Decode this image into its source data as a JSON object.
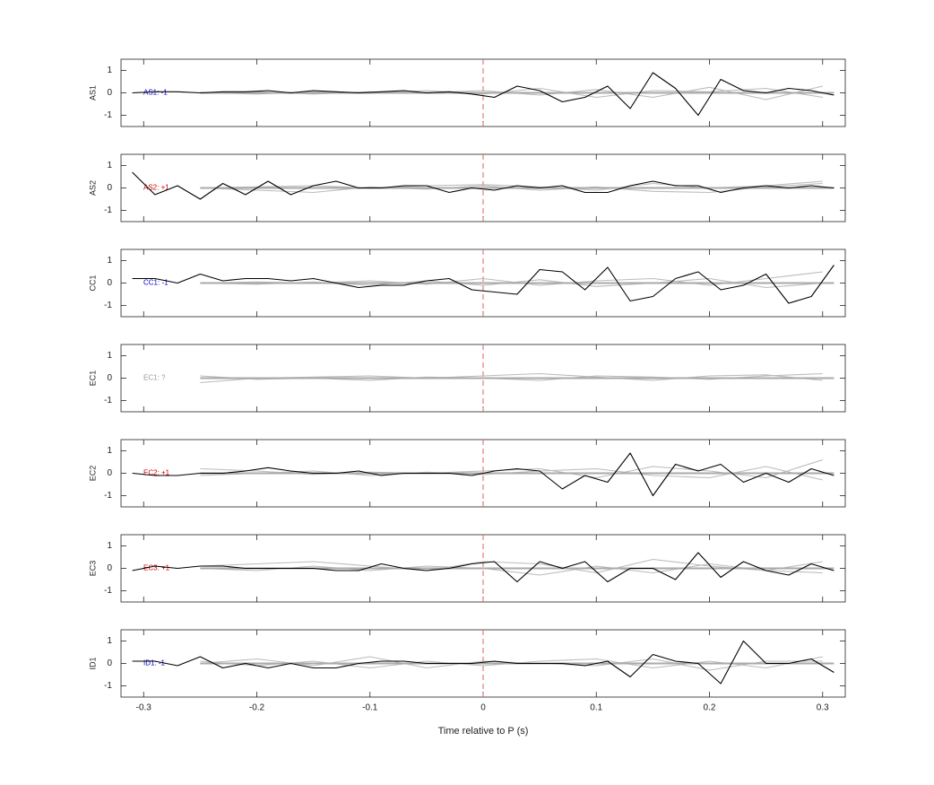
{
  "chart_data": [
    {
      "type": "line",
      "ylabel": "AS1",
      "annotation": "AS1: -1",
      "annotation_color": "#0000cc",
      "x": [
        -0.31,
        -0.29,
        -0.27,
        -0.25,
        -0.23,
        -0.21,
        -0.19,
        -0.17,
        -0.15,
        -0.13,
        -0.11,
        -0.09,
        -0.07,
        -0.05,
        -0.03,
        -0.01,
        0.01,
        0.03,
        0.05,
        0.07,
        0.09,
        0.11,
        0.13,
        0.15,
        0.17,
        0.19,
        0.21,
        0.23,
        0.25,
        0.27,
        0.29,
        0.31
      ],
      "xlim": [
        -0.32,
        0.32
      ],
      "xticks": [
        -0.3,
        -0.2,
        -0.1,
        0,
        0.1,
        0.2,
        0.3
      ],
      "ylim": [
        -1.5,
        1.5
      ],
      "yticks": [
        -1,
        0,
        1
      ],
      "vline": 0,
      "vline_color": "#e06060",
      "series": [
        {
          "color": "#bbbbbb",
          "x": [
            -0.25,
            -0.2,
            -0.15,
            -0.1,
            -0.05,
            0,
            0.05,
            0.1,
            0.15,
            0.2,
            0.25,
            0.3
          ],
          "values": [
            0,
            0.05,
            -0.05,
            0.05,
            0,
            0.1,
            -0.1,
            0.15,
            -0.2,
            0.25,
            -0.3,
            0.3
          ]
        },
        {
          "color": "#bbbbbb",
          "x": [
            -0.25,
            -0.2,
            -0.15,
            -0.1,
            -0.05,
            0,
            0.05,
            0.1,
            0.15,
            0.2,
            0.25,
            0.3
          ],
          "values": [
            0,
            -0.05,
            0.05,
            0,
            0.1,
            -0.05,
            0.2,
            -0.2,
            0.1,
            0.05,
            0.2,
            -0.2
          ]
        },
        {
          "color": "#aaaaaa",
          "line_width": 2,
          "x": [
            -0.25,
            0.31
          ],
          "values": [
            0,
            0
          ]
        },
        {
          "color": "#000000",
          "values": [
            0.0,
            0.05,
            0.05,
            0.0,
            0.05,
            0.05,
            0.1,
            0.0,
            0.1,
            0.05,
            0.0,
            0.05,
            0.1,
            0.0,
            0.05,
            -0.05,
            -0.2,
            0.3,
            0.1,
            -0.4,
            -0.2,
            0.3,
            -0.7,
            0.9,
            0.2,
            -1.0,
            0.6,
            0.1,
            0.0,
            0.2,
            0.1,
            -0.1
          ]
        }
      ]
    },
    {
      "type": "line",
      "ylabel": "AS2",
      "annotation": "AS2: +1",
      "annotation_color": "#cc0000",
      "x": [
        -0.31,
        -0.29,
        -0.27,
        -0.25,
        -0.23,
        -0.21,
        -0.19,
        -0.17,
        -0.15,
        -0.13,
        -0.11,
        -0.09,
        -0.07,
        -0.05,
        -0.03,
        -0.01,
        0.01,
        0.03,
        0.05,
        0.07,
        0.09,
        0.11,
        0.13,
        0.15,
        0.17,
        0.19,
        0.21,
        0.23,
        0.25,
        0.27,
        0.29,
        0.31
      ],
      "xlim": [
        -0.32,
        0.32
      ],
      "xticks": [
        -0.3,
        -0.2,
        -0.1,
        0,
        0.1,
        0.2,
        0.3
      ],
      "ylim": [
        -1.5,
        1.5
      ],
      "yticks": [
        -1,
        0,
        1
      ],
      "vline": 0,
      "vline_color": "#e06060",
      "series": [
        {
          "color": "#bbbbbb",
          "x": [
            -0.25,
            -0.2,
            -0.15,
            -0.1,
            -0.05,
            0,
            0.05,
            0.1,
            0.15,
            0.2,
            0.25,
            0.3
          ],
          "values": [
            0,
            0.05,
            0.1,
            0,
            0.1,
            0.15,
            0.05,
            -0.1,
            0.2,
            0,
            0.1,
            0.3
          ]
        },
        {
          "color": "#bbbbbb",
          "x": [
            -0.25,
            -0.2,
            -0.15,
            -0.1,
            -0.05,
            0,
            0.05,
            0.1,
            0.15,
            0.2,
            0.25,
            0.3
          ],
          "values": [
            0,
            -0.1,
            -0.2,
            0.05,
            -0.05,
            0.1,
            -0.1,
            0.05,
            -0.15,
            -0.2,
            0.05,
            0.2
          ]
        },
        {
          "color": "#aaaaaa",
          "line_width": 2,
          "x": [
            -0.25,
            0.31
          ],
          "values": [
            0,
            0
          ]
        },
        {
          "color": "#000000",
          "values": [
            0.7,
            -0.3,
            0.1,
            -0.5,
            0.2,
            -0.3,
            0.3,
            -0.3,
            0.1,
            0.3,
            0.0,
            0.0,
            0.1,
            0.1,
            -0.2,
            0.0,
            -0.1,
            0.1,
            0.0,
            0.1,
            -0.2,
            -0.2,
            0.1,
            0.3,
            0.1,
            0.1,
            -0.2,
            0.0,
            0.1,
            0.0,
            0.1,
            0.0
          ]
        }
      ]
    },
    {
      "type": "line",
      "ylabel": "CC1",
      "annotation": "CC1: -1",
      "annotation_color": "#0000cc",
      "x": [
        -0.31,
        -0.29,
        -0.27,
        -0.25,
        -0.23,
        -0.21,
        -0.19,
        -0.17,
        -0.15,
        -0.13,
        -0.11,
        -0.09,
        -0.07,
        -0.05,
        -0.03,
        -0.01,
        0.01,
        0.03,
        0.05,
        0.07,
        0.09,
        0.11,
        0.13,
        0.15,
        0.17,
        0.19,
        0.21,
        0.23,
        0.25,
        0.27,
        0.29,
        0.31
      ],
      "xlim": [
        -0.32,
        0.32
      ],
      "xticks": [
        -0.3,
        -0.2,
        -0.1,
        0,
        0.1,
        0.2,
        0.3
      ],
      "ylim": [
        -1.5,
        1.5
      ],
      "yticks": [
        -1,
        0,
        1
      ],
      "vline": 0,
      "vline_color": "#e06060",
      "series": [
        {
          "color": "#bbbbbb",
          "x": [
            -0.25,
            -0.2,
            -0.15,
            -0.1,
            -0.05,
            0,
            0.05,
            0.1,
            0.15,
            0.2,
            0.25,
            0.3
          ],
          "values": [
            0,
            0.05,
            0,
            0.1,
            -0.05,
            0.2,
            -0.1,
            0.1,
            0.2,
            -0.1,
            0.2,
            0.5
          ]
        },
        {
          "color": "#bbbbbb",
          "x": [
            -0.25,
            -0.2,
            -0.15,
            -0.1,
            -0.05,
            0,
            0.05,
            0.1,
            0.15,
            0.2,
            0.25,
            0.3
          ],
          "values": [
            0,
            -0.05,
            0.05,
            -0.1,
            0.1,
            -0.1,
            0.15,
            -0.15,
            0,
            0.2,
            -0.2,
            0
          ]
        },
        {
          "color": "#aaaaaa",
          "line_width": 2,
          "x": [
            -0.25,
            0.31
          ],
          "values": [
            0,
            0
          ]
        },
        {
          "color": "#000000",
          "values": [
            0.2,
            0.2,
            0.0,
            0.4,
            0.1,
            0.2,
            0.2,
            0.1,
            0.2,
            0.0,
            -0.2,
            -0.1,
            -0.1,
            0.1,
            0.2,
            -0.3,
            -0.4,
            -0.5,
            0.6,
            0.5,
            -0.3,
            0.7,
            -0.8,
            -0.6,
            0.2,
            0.5,
            -0.3,
            -0.1,
            0.4,
            -0.9,
            -0.6,
            0.8
          ]
        }
      ]
    },
    {
      "type": "line",
      "ylabel": "EC1",
      "annotation": "EC1: ?",
      "annotation_color": "#999999",
      "x": [
        -0.31,
        -0.29,
        -0.27,
        -0.25,
        -0.23,
        -0.21,
        -0.19,
        -0.17,
        -0.15,
        -0.13,
        -0.11,
        -0.09,
        -0.07,
        -0.05,
        -0.03,
        -0.01,
        0.01,
        0.03,
        0.05,
        0.07,
        0.09,
        0.11,
        0.13,
        0.15,
        0.17,
        0.19,
        0.21,
        0.23,
        0.25,
        0.27,
        0.29,
        0.31
      ],
      "xlim": [
        -0.32,
        0.32
      ],
      "xticks": [
        -0.3,
        -0.2,
        -0.1,
        0,
        0.1,
        0.2,
        0.3
      ],
      "ylim": [
        -1.5,
        1.5
      ],
      "yticks": [
        -1,
        0,
        1
      ],
      "vline": 0,
      "vline_color": "#e06060",
      "series": [
        {
          "color": "#bbbbbb",
          "x": [
            -0.25,
            -0.2,
            -0.15,
            -0.1,
            -0.05,
            0,
            0.05,
            0.1,
            0.15,
            0.2,
            0.25,
            0.3
          ],
          "values": [
            -0.2,
            0,
            0.05,
            0.1,
            0,
            0.1,
            0.2,
            0.05,
            -0.1,
            0.1,
            0.15,
            -0.1
          ]
        },
        {
          "color": "#bbbbbb",
          "x": [
            -0.25,
            -0.2,
            -0.15,
            -0.1,
            -0.05,
            0,
            0.05,
            0.1,
            0.15,
            0.2,
            0.25,
            0.3
          ],
          "values": [
            0.1,
            -0.05,
            0,
            -0.1,
            0.05,
            0,
            -0.1,
            0.1,
            0.05,
            -0.05,
            0.1,
            0.2
          ]
        },
        {
          "color": "#aaaaaa",
          "line_width": 2,
          "x": [
            -0.25,
            0.31
          ],
          "values": [
            0,
            0
          ]
        }
      ]
    },
    {
      "type": "line",
      "ylabel": "EC2",
      "annotation": "EC2: +1",
      "annotation_color": "#cc0000",
      "x": [
        -0.31,
        -0.29,
        -0.27,
        -0.25,
        -0.23,
        -0.21,
        -0.19,
        -0.17,
        -0.15,
        -0.13,
        -0.11,
        -0.09,
        -0.07,
        -0.05,
        -0.03,
        -0.01,
        0.01,
        0.03,
        0.05,
        0.07,
        0.09,
        0.11,
        0.13,
        0.15,
        0.17,
        0.19,
        0.21,
        0.23,
        0.25,
        0.27,
        0.29,
        0.31
      ],
      "xlim": [
        -0.32,
        0.32
      ],
      "xticks": [
        -0.3,
        -0.2,
        -0.1,
        0,
        0.1,
        0.2,
        0.3
      ],
      "ylim": [
        -1.5,
        1.5
      ],
      "yticks": [
        -1,
        0,
        1
      ],
      "vline": 0,
      "vline_color": "#e06060",
      "series": [
        {
          "color": "#bbbbbb",
          "x": [
            -0.25,
            -0.2,
            -0.15,
            -0.1,
            -0.05,
            0,
            0.05,
            0.1,
            0.15,
            0.2,
            0.25,
            0.3
          ],
          "values": [
            0.2,
            0.1,
            -0.05,
            0.05,
            0,
            0.1,
            0.2,
            -0.2,
            0.3,
            0.1,
            -0.2,
            0.6
          ]
        },
        {
          "color": "#bbbbbb",
          "x": [
            -0.25,
            -0.2,
            -0.15,
            -0.1,
            -0.05,
            0,
            0.05,
            0.1,
            0.15,
            0.2,
            0.25,
            0.3
          ],
          "values": [
            -0.1,
            0,
            0.1,
            -0.1,
            0.05,
            -0.05,
            0.1,
            0.2,
            -0.1,
            -0.2,
            0.3,
            -0.3
          ]
        },
        {
          "color": "#aaaaaa",
          "line_width": 2,
          "x": [
            -0.25,
            0.31
          ],
          "values": [
            0,
            0
          ]
        },
        {
          "color": "#000000",
          "values": [
            0.0,
            -0.1,
            -0.1,
            0.0,
            0.0,
            0.1,
            0.25,
            0.1,
            0.0,
            0.0,
            0.1,
            -0.1,
            0.0,
            0.0,
            0.0,
            -0.1,
            0.1,
            0.2,
            0.1,
            -0.7,
            -0.1,
            -0.4,
            0.9,
            -1.0,
            0.4,
            0.1,
            0.4,
            -0.4,
            0.0,
            -0.4,
            0.2,
            -0.1
          ]
        }
      ]
    },
    {
      "type": "line",
      "ylabel": "EC3",
      "annotation": "EC3: +1",
      "annotation_color": "#cc0000",
      "x": [
        -0.31,
        -0.29,
        -0.27,
        -0.25,
        -0.23,
        -0.21,
        -0.19,
        -0.17,
        -0.15,
        -0.13,
        -0.11,
        -0.09,
        -0.07,
        -0.05,
        -0.03,
        -0.01,
        0.01,
        0.03,
        0.05,
        0.07,
        0.09,
        0.11,
        0.13,
        0.15,
        0.17,
        0.19,
        0.21,
        0.23,
        0.25,
        0.27,
        0.29,
        0.31
      ],
      "xlim": [
        -0.32,
        0.32
      ],
      "xticks": [
        -0.3,
        -0.2,
        -0.1,
        0,
        0.1,
        0.2,
        0.3
      ],
      "ylim": [
        -1.5,
        1.5
      ],
      "yticks": [
        -1,
        0,
        1
      ],
      "vline": 0,
      "vline_color": "#e06060",
      "series": [
        {
          "color": "#bbbbbb",
          "x": [
            -0.25,
            -0.2,
            -0.15,
            -0.1,
            -0.05,
            0,
            0.05,
            0.1,
            0.15,
            0.2,
            0.25,
            0.3
          ],
          "values": [
            0.1,
            0.2,
            0.3,
            0.1,
            -0.1,
            0.3,
            0.2,
            -0.2,
            0.4,
            0.1,
            -0.1,
            0.3
          ]
        },
        {
          "color": "#bbbbbb",
          "x": [
            -0.25,
            -0.2,
            -0.15,
            -0.1,
            -0.05,
            0,
            0.05,
            0.1,
            0.15,
            0.2,
            0.25,
            0.3
          ],
          "values": [
            0,
            -0.1,
            0.1,
            -0.1,
            0.1,
            0,
            -0.3,
            0.1,
            -0.2,
            0.2,
            -0.1,
            -0.2
          ]
        },
        {
          "color": "#aaaaaa",
          "line_width": 2,
          "x": [
            -0.25,
            0.31
          ],
          "values": [
            0,
            0
          ]
        },
        {
          "color": "#000000",
          "values": [
            -0.1,
            0.1,
            0.0,
            0.1,
            0.1,
            0.0,
            0.0,
            0.0,
            0.0,
            -0.1,
            -0.1,
            0.2,
            0.0,
            -0.1,
            0.0,
            0.2,
            0.3,
            -0.6,
            0.3,
            0.0,
            0.3,
            -0.6,
            0.0,
            0.0,
            -0.5,
            0.7,
            -0.4,
            0.3,
            -0.1,
            -0.3,
            0.2,
            -0.1
          ]
        }
      ]
    },
    {
      "type": "line",
      "ylabel": "ID1",
      "annotation": "ID1: -1",
      "annotation_color": "#0000cc",
      "xlabel": "Time relative to P (s)",
      "x": [
        -0.31,
        -0.29,
        -0.27,
        -0.25,
        -0.23,
        -0.21,
        -0.19,
        -0.17,
        -0.15,
        -0.13,
        -0.11,
        -0.09,
        -0.07,
        -0.05,
        -0.03,
        -0.01,
        0.01,
        0.03,
        0.05,
        0.07,
        0.09,
        0.11,
        0.13,
        0.15,
        0.17,
        0.19,
        0.21,
        0.23,
        0.25,
        0.27,
        0.29,
        0.31
      ],
      "xlim": [
        -0.32,
        0.32
      ],
      "xticks": [
        -0.3,
        -0.2,
        -0.1,
        0,
        0.1,
        0.2,
        0.3
      ],
      "ylim": [
        -1.5,
        1.5
      ],
      "yticks": [
        -1,
        0,
        1
      ],
      "vline": 0,
      "vline_color": "#e06060",
      "series": [
        {
          "color": "#bbbbbb",
          "x": [
            -0.25,
            -0.2,
            -0.15,
            -0.1,
            -0.05,
            0,
            0.05,
            0.1,
            0.15,
            0.2,
            0.25,
            0.3
          ],
          "values": [
            0,
            0.2,
            -0.1,
            0.3,
            -0.2,
            0.1,
            0,
            -0.1,
            0.2,
            -0.3,
            0.1,
            0.1
          ]
        },
        {
          "color": "#bbbbbb",
          "x": [
            -0.25,
            -0.2,
            -0.15,
            -0.1,
            -0.05,
            0,
            0.05,
            0.1,
            0.15,
            0.2,
            0.25,
            0.3
          ],
          "values": [
            0.1,
            -0.1,
            0.1,
            -0.2,
            0.1,
            -0.1,
            0.1,
            0.2,
            -0.2,
            0.1,
            -0.2,
            0.3
          ]
        },
        {
          "color": "#aaaaaa",
          "line_width": 2,
          "x": [
            -0.25,
            0.31
          ],
          "values": [
            0,
            0
          ]
        },
        {
          "color": "#000000",
          "values": [
            0.1,
            0.1,
            -0.1,
            0.3,
            -0.2,
            0.0,
            -0.2,
            0.0,
            -0.2,
            -0.2,
            0.0,
            0.1,
            0.1,
            0.0,
            0.0,
            0.0,
            0.1,
            0.0,
            0.0,
            0.0,
            -0.1,
            0.1,
            -0.6,
            0.4,
            0.1,
            0.0,
            -0.9,
            1.0,
            0.0,
            0.0,
            0.2,
            -0.4
          ]
        }
      ]
    }
  ]
}
